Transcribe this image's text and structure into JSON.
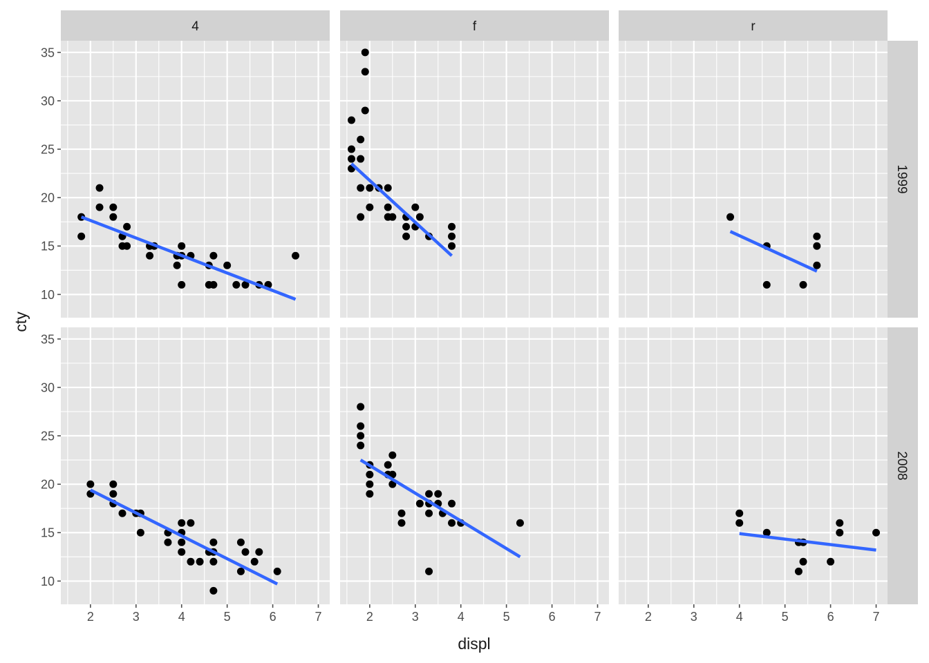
{
  "chart_data": {
    "type": "scatter",
    "facet": {
      "cols": [
        "4",
        "f",
        "r"
      ],
      "rows": [
        "1999",
        "2008"
      ]
    },
    "xlabel": "displ",
    "ylabel": "cty",
    "xlim": [
      1.35,
      7.25
    ],
    "ylim": [
      7.6,
      36.2
    ],
    "x_ticks": [
      "2",
      "3",
      "4",
      "5",
      "6",
      "7"
    ],
    "y_ticks": [
      "10",
      "15",
      "20",
      "25",
      "30",
      "35"
    ],
    "colors": {
      "panel_bg": "#e5e5e5",
      "strip_bg": "#d2d2d2",
      "grid": "#ffffff",
      "point": "#000000",
      "fit_line": "#3366ff",
      "tick": "#4d4d4d"
    },
    "panels": [
      {
        "col": "4",
        "row": "1999",
        "points": [
          [
            1.8,
            18
          ],
          [
            1.8,
            16
          ],
          [
            2.2,
            21
          ],
          [
            2.2,
            19
          ],
          [
            2.5,
            19
          ],
          [
            2.5,
            18
          ],
          [
            2.7,
            16
          ],
          [
            2.7,
            15
          ],
          [
            2.8,
            17
          ],
          [
            2.8,
            15
          ],
          [
            3.3,
            15
          ],
          [
            3.3,
            14
          ],
          [
            3.4,
            15
          ],
          [
            3.9,
            14
          ],
          [
            3.9,
            13
          ],
          [
            4.0,
            15
          ],
          [
            4.0,
            14
          ],
          [
            4.0,
            11
          ],
          [
            4.2,
            14
          ],
          [
            4.6,
            13
          ],
          [
            4.6,
            11
          ],
          [
            4.7,
            14
          ],
          [
            4.7,
            11
          ],
          [
            5.0,
            13
          ],
          [
            5.2,
            11
          ],
          [
            5.4,
            11
          ],
          [
            5.7,
            11
          ],
          [
            5.9,
            11
          ],
          [
            6.5,
            14
          ]
        ],
        "fit": [
          [
            1.8,
            18.0
          ],
          [
            6.5,
            9.5
          ]
        ]
      },
      {
        "col": "f",
        "row": "1999",
        "points": [
          [
            1.6,
            28
          ],
          [
            1.6,
            25
          ],
          [
            1.6,
            24
          ],
          [
            1.6,
            23
          ],
          [
            1.8,
            26
          ],
          [
            1.8,
            24
          ],
          [
            1.8,
            21
          ],
          [
            1.8,
            18
          ],
          [
            1.9,
            35
          ],
          [
            1.9,
            33
          ],
          [
            1.9,
            29
          ],
          [
            2.0,
            21
          ],
          [
            2.0,
            19
          ],
          [
            2.2,
            21
          ],
          [
            2.4,
            21
          ],
          [
            2.4,
            19
          ],
          [
            2.4,
            18
          ],
          [
            2.5,
            18
          ],
          [
            2.8,
            18
          ],
          [
            2.8,
            17
          ],
          [
            2.8,
            16
          ],
          [
            3.0,
            19
          ],
          [
            3.0,
            17
          ],
          [
            3.1,
            18
          ],
          [
            3.3,
            16
          ],
          [
            3.8,
            17
          ],
          [
            3.8,
            16
          ],
          [
            3.8,
            15
          ]
        ],
        "fit": [
          [
            1.6,
            23.5
          ],
          [
            3.8,
            14.0
          ]
        ]
      },
      {
        "col": "r",
        "row": "1999",
        "points": [
          [
            3.8,
            18
          ],
          [
            4.6,
            15
          ],
          [
            4.6,
            11
          ],
          [
            5.4,
            11
          ],
          [
            5.7,
            16
          ],
          [
            5.7,
            15
          ],
          [
            5.7,
            13
          ]
        ],
        "fit": [
          [
            3.8,
            16.5
          ],
          [
            5.7,
            12.4
          ]
        ]
      },
      {
        "col": "4",
        "row": "2008",
        "points": [
          [
            2.0,
            20
          ],
          [
            2.0,
            19
          ],
          [
            2.5,
            20
          ],
          [
            2.5,
            19
          ],
          [
            2.5,
            18
          ],
          [
            2.7,
            17
          ],
          [
            3.0,
            17
          ],
          [
            3.1,
            17
          ],
          [
            3.1,
            15
          ],
          [
            3.7,
            15
          ],
          [
            3.7,
            14
          ],
          [
            4.0,
            16
          ],
          [
            4.0,
            15
          ],
          [
            4.0,
            14
          ],
          [
            4.0,
            13
          ],
          [
            4.2,
            16
          ],
          [
            4.2,
            12
          ],
          [
            4.4,
            12
          ],
          [
            4.6,
            13
          ],
          [
            4.7,
            14
          ],
          [
            4.7,
            13
          ],
          [
            4.7,
            12
          ],
          [
            4.7,
            9
          ],
          [
            5.3,
            14
          ],
          [
            5.3,
            11
          ],
          [
            5.4,
            13
          ],
          [
            5.6,
            12
          ],
          [
            5.7,
            13
          ],
          [
            6.1,
            11
          ]
        ],
        "fit": [
          [
            2.0,
            19.4
          ],
          [
            6.1,
            9.7
          ]
        ]
      },
      {
        "col": "f",
        "row": "2008",
        "points": [
          [
            1.8,
            28
          ],
          [
            1.8,
            26
          ],
          [
            1.8,
            25
          ],
          [
            1.8,
            24
          ],
          [
            2.0,
            22
          ],
          [
            2.0,
            21
          ],
          [
            2.0,
            20
          ],
          [
            2.0,
            19
          ],
          [
            2.4,
            22
          ],
          [
            2.4,
            21
          ],
          [
            2.5,
            23
          ],
          [
            2.5,
            21
          ],
          [
            2.5,
            20
          ],
          [
            2.7,
            17
          ],
          [
            2.7,
            16
          ],
          [
            3.1,
            18
          ],
          [
            3.3,
            19
          ],
          [
            3.3,
            18
          ],
          [
            3.3,
            17
          ],
          [
            3.3,
            11
          ],
          [
            3.5,
            19
          ],
          [
            3.5,
            18
          ],
          [
            3.6,
            17
          ],
          [
            3.8,
            18
          ],
          [
            3.8,
            16
          ],
          [
            4.0,
            16
          ],
          [
            5.3,
            16
          ]
        ],
        "fit": [
          [
            1.8,
            22.5
          ],
          [
            5.3,
            12.5
          ]
        ]
      },
      {
        "col": "r",
        "row": "2008",
        "points": [
          [
            4.0,
            17
          ],
          [
            4.0,
            16
          ],
          [
            4.6,
            15
          ],
          [
            5.3,
            14
          ],
          [
            5.3,
            11
          ],
          [
            5.4,
            14
          ],
          [
            5.4,
            12
          ],
          [
            6.0,
            12
          ],
          [
            6.2,
            16
          ],
          [
            6.2,
            15
          ],
          [
            7.0,
            15
          ]
        ],
        "fit": [
          [
            4.0,
            14.9
          ],
          [
            7.0,
            13.2
          ]
        ]
      }
    ]
  }
}
